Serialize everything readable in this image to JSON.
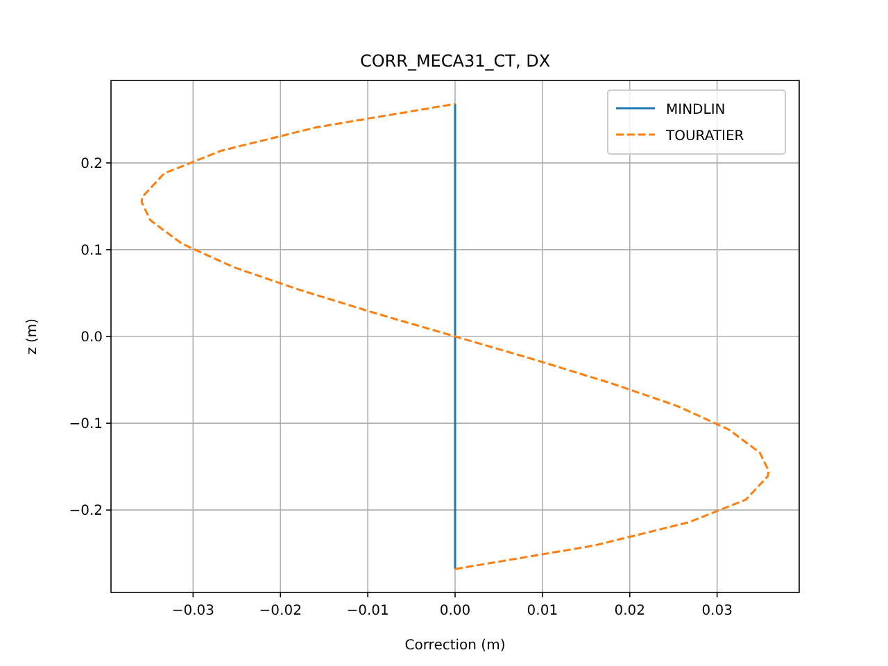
{
  "chart_data": {
    "type": "line",
    "title": "CORR_MECA31_CT, DX",
    "xlabel": "Correction (m)",
    "ylabel": "z (m)",
    "xlim": [
      -0.0394,
      0.0394
    ],
    "ylim": [
      -0.295,
      0.295
    ],
    "xticks": [
      {
        "value": -0.03,
        "label": "−0.03"
      },
      {
        "value": -0.02,
        "label": "−0.02"
      },
      {
        "value": -0.01,
        "label": "−0.01"
      },
      {
        "value": 0,
        "label": "0.00"
      },
      {
        "value": 0.01,
        "label": "0.01"
      },
      {
        "value": 0.02,
        "label": "0.02"
      },
      {
        "value": 0.03,
        "label": "0.03"
      }
    ],
    "yticks": [
      {
        "value": -0.2,
        "label": "−0.2"
      },
      {
        "value": -0.1,
        "label": "−0.1"
      },
      {
        "value": 0,
        "label": "0.0"
      },
      {
        "value": 0.1,
        "label": "0.1"
      },
      {
        "value": 0.2,
        "label": "0.2"
      }
    ],
    "grid": true,
    "legend": "top right",
    "series": [
      {
        "name": "MINDLIN",
        "color": "#1f77b4",
        "line_style": "solid",
        "x": [
          0,
          0
        ],
        "values": [
          -0.268,
          0.268
        ]
      },
      {
        "name": "TOURATIER",
        "color": "#ff7f0e",
        "line_style": "dashed",
        "x": [
          0,
          0.0159,
          0.0268,
          0.0333,
          0.0358,
          0.0359,
          0.0349,
          0.0313,
          0.0254,
          0.0179,
          0.0092,
          0,
          -0.0092,
          -0.0179,
          -0.0254,
          -0.0313,
          -0.0349,
          -0.0359,
          -0.0358,
          -0.0333,
          -0.0268,
          -0.0159,
          0
        ],
        "values": [
          -0.268,
          -0.241,
          -0.214,
          -0.188,
          -0.161,
          -0.155,
          -0.134,
          -0.107,
          -0.08,
          -0.054,
          -0.027,
          0,
          0.027,
          0.054,
          0.08,
          0.107,
          0.134,
          0.155,
          0.161,
          0.188,
          0.214,
          0.241,
          0.268
        ]
      }
    ]
  }
}
